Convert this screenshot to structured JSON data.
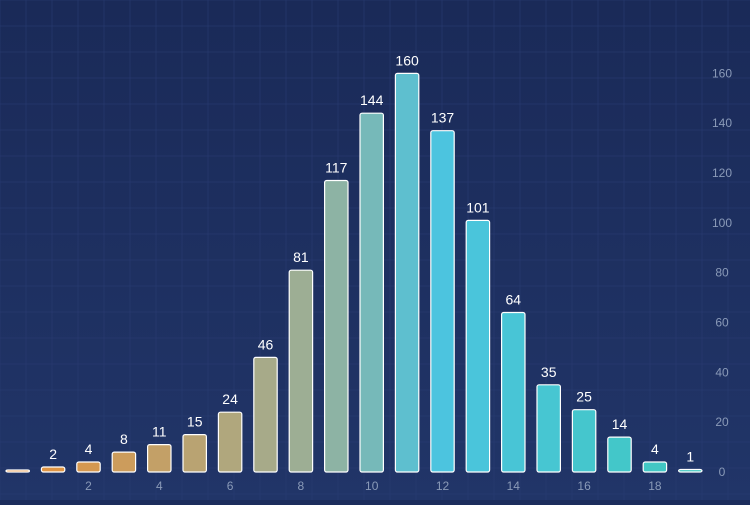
{
  "chart_data": {
    "type": "bar",
    "title": "",
    "xlabel": "",
    "ylabel": "",
    "x": [
      0,
      1,
      2,
      3,
      4,
      5,
      6,
      7,
      8,
      9,
      10,
      11,
      12,
      13,
      14,
      15,
      16,
      17,
      18,
      19
    ],
    "values": [
      0,
      2,
      4,
      8,
      11,
      15,
      24,
      46,
      81,
      117,
      144,
      160,
      137,
      101,
      64,
      35,
      25,
      14,
      4,
      1
    ],
    "data_labels": [
      "",
      "2",
      "4",
      "8",
      "11",
      "15",
      "24",
      "46",
      "81",
      "117",
      "144",
      "160",
      "137",
      "101",
      "64",
      "35",
      "25",
      "14",
      "4",
      "1"
    ],
    "x_ticks": [
      2,
      4,
      6,
      8,
      10,
      12,
      14,
      16,
      18
    ],
    "y_ticks": [
      0,
      20,
      40,
      60,
      80,
      100,
      120,
      140,
      160
    ],
    "xlim": [
      -0.5,
      19.5
    ],
    "ylim": [
      0,
      175
    ],
    "y_axis_side": "right",
    "grid": true,
    "colors": {
      "background": "#1c2d5c",
      "grid": "#2a3d72",
      "tick_label": "#8a9ab8",
      "data_label": "#ffffff",
      "bar_stroke": "#ffffff",
      "gradient_start": "#e8913a",
      "gradient_mid": "#98b09a",
      "gradient_peak": "#4cc4e0",
      "gradient_end": "#40c8c0"
    }
  }
}
